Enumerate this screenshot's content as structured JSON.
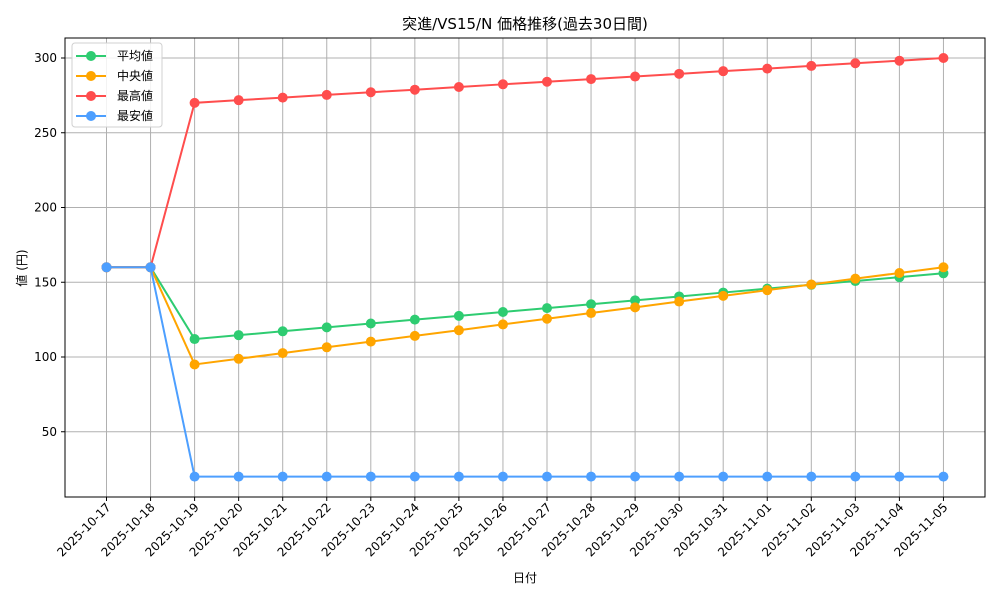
{
  "chart_data": {
    "type": "line",
    "title": "突進/VS15/N 価格推移(過去30日間)",
    "xlabel": "日付",
    "ylabel": "値 (円)",
    "ylim": [
      6,
      314
    ],
    "yticks": [
      50,
      100,
      150,
      200,
      250,
      300
    ],
    "grid": true,
    "legend_position": "upper left",
    "categories": [
      "2025-10-17",
      "2025-10-18",
      "2025-10-19",
      "2025-10-20",
      "2025-10-21",
      "2025-10-22",
      "2025-10-23",
      "2025-10-24",
      "2025-10-25",
      "2025-10-26",
      "2025-10-27",
      "2025-10-28",
      "2025-10-29",
      "2025-10-30",
      "2025-10-31",
      "2025-11-01",
      "2025-11-02",
      "2025-11-03",
      "2025-11-04",
      "2025-11-05"
    ],
    "series": [
      {
        "name": "平均値",
        "color": "#2ecc71",
        "values": [
          160,
          160,
          112,
          114.6,
          117.2,
          119.8,
          122.4,
          125,
          127.5,
          130.1,
          132.7,
          135.3,
          137.9,
          140.5,
          143.1,
          145.7,
          148.3,
          150.8,
          153.4,
          156
        ]
      },
      {
        "name": "中央値",
        "color": "#ffa500",
        "values": [
          160,
          160,
          95,
          98.8,
          102.6,
          106.5,
          110.3,
          114.1,
          117.9,
          121.8,
          125.6,
          129.4,
          133.2,
          137.1,
          140.9,
          144.7,
          148.5,
          152.4,
          156.2,
          160
        ]
      },
      {
        "name": "最高値",
        "color": "#ff4d4d",
        "values": [
          160,
          160,
          270,
          271.8,
          273.5,
          275.3,
          277.1,
          278.8,
          280.6,
          282.4,
          284.1,
          285.9,
          287.6,
          289.4,
          291.2,
          292.9,
          294.7,
          296.5,
          298.2,
          300
        ]
      },
      {
        "name": "最安値",
        "color": "#4d9fff",
        "values": [
          160,
          160,
          20,
          20,
          20,
          20,
          20,
          20,
          20,
          20,
          20,
          20,
          20,
          20,
          20,
          20,
          20,
          20,
          20,
          20
        ]
      }
    ]
  }
}
